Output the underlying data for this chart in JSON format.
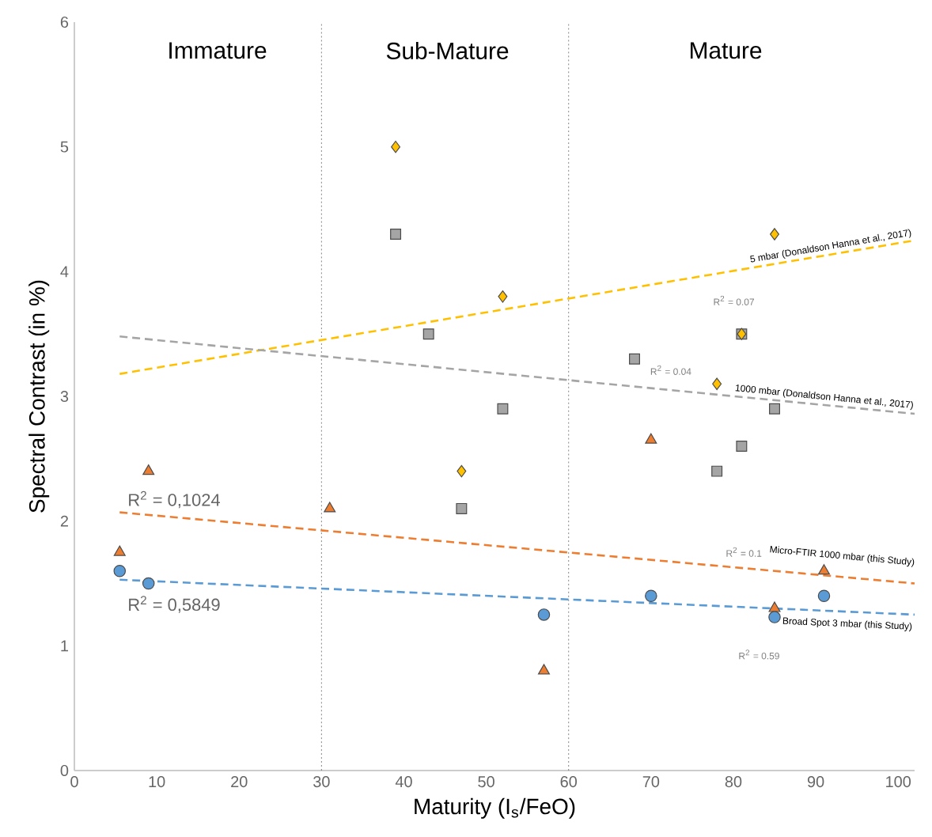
{
  "chart_data": {
    "type": "scatter",
    "xlabel": "Maturity (I$_{s}$/FeO)",
    "ylabel": "Spectral Contrast (in %)",
    "xlim": [
      0,
      102
    ],
    "ylim": [
      0,
      6
    ],
    "xticks": [
      0,
      10,
      20,
      30,
      40,
      50,
      60,
      70,
      80,
      90,
      100
    ],
    "yticks": [
      0,
      1,
      2,
      3,
      4,
      5,
      6
    ],
    "grid": false,
    "series": [
      {
        "marker": "square",
        "color": "#a5a5a5",
        "x": [
          39,
          43,
          52,
          47,
          68,
          78,
          81,
          81,
          85
        ],
        "values": [
          4.3,
          3.5,
          2.9,
          2.1,
          3.3,
          2.4,
          2.6,
          3.5,
          2.9
        ]
      },
      {
        "marker": "diamond",
        "color": "#ffc000",
        "x": [
          39,
          52,
          47,
          81,
          78,
          85
        ],
        "values": [
          5.0,
          3.8,
          2.4,
          3.5,
          3.1,
          4.3
        ]
      },
      {
        "marker": "triangle",
        "color": "#ed7d31",
        "x": [
          5.5,
          9,
          31,
          57,
          70,
          85,
          91
        ],
        "values": [
          1.75,
          2.4,
          2.1,
          0.8,
          2.65,
          1.3,
          1.6
        ]
      },
      {
        "marker": "circle",
        "color": "#5b9bd5",
        "x": [
          5.5,
          9,
          57,
          70,
          85,
          91
        ],
        "values": [
          1.6,
          1.5,
          1.25,
          1.4,
          1.23,
          1.4
        ]
      },
      {
        "type": "line",
        "line_style": "dashed",
        "name": "5 mbar (Donaldson Hanna et al., 2017)",
        "color": "#ffc000",
        "x": [
          5.5,
          102
        ],
        "values": [
          3.18,
          4.25
        ]
      },
      {
        "type": "line",
        "line_style": "dashed",
        "name": "1000 mbar (Donaldson Hanna et al., 2017)",
        "color": "#a5a5a5",
        "x": [
          5.5,
          102
        ],
        "values": [
          3.48,
          2.86
        ]
      },
      {
        "type": "line",
        "line_style": "dashed",
        "name": "Micro-FTIR 1000 mbar (this Study)",
        "color": "#ed7d31",
        "x": [
          5.5,
          102
        ],
        "values": [
          2.07,
          1.5
        ]
      },
      {
        "type": "line",
        "line_style": "dashed",
        "name": "Broad Spot 3 mbar (this Study)",
        "color": "#5b9bd5",
        "x": [
          5.5,
          102
        ],
        "values": [
          1.53,
          1.25
        ]
      }
    ],
    "ref_lines": [
      {
        "axis": "x",
        "value": 30,
        "line_style": "dotted"
      },
      {
        "axis": "x",
        "value": 60,
        "line_style": "dotted"
      }
    ],
    "annotations": [
      "Immature",
      "Sub-Mature",
      "Mature",
      "R$^{2}$ = 0.07",
      "R$^{2}$ = 0.04",
      "R$^{2}$ = 0.1",
      "R$^{2}$ = 0.59",
      "R$^{2}$ = 0,1024",
      "R$^{2}$ = 0,5849"
    ]
  }
}
